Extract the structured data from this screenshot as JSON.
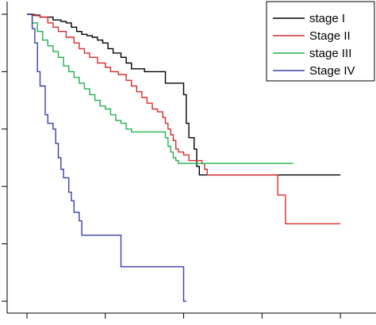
{
  "chart_data": {
    "type": "line",
    "step": true,
    "title": "",
    "xlabel": "",
    "ylabel": "",
    "xlim": [
      0,
      130
    ],
    "ylim": [
      0,
      1
    ],
    "grid": false,
    "legend_position": "top-right",
    "x_ticks": [
      0,
      30,
      60,
      90,
      120
    ],
    "y_ticks": [
      0.0,
      0.2,
      0.4,
      0.6,
      0.8,
      1.0
    ],
    "series": [
      {
        "name": "stage I",
        "color": "#000000",
        "x": [
          0,
          2,
          5,
          10,
          13,
          15,
          17,
          19,
          21,
          23,
          25,
          27,
          29,
          31,
          33,
          36,
          38,
          40,
          45,
          53,
          55,
          60,
          61,
          62,
          64,
          65,
          66,
          120
        ],
        "y": [
          1.0,
          0.997,
          0.99,
          0.98,
          0.975,
          0.97,
          0.955,
          0.94,
          0.93,
          0.925,
          0.92,
          0.91,
          0.9,
          0.88,
          0.865,
          0.85,
          0.83,
          0.81,
          0.8,
          0.76,
          0.76,
          0.72,
          0.62,
          0.57,
          0.53,
          0.47,
          0.44,
          0.44
        ]
      },
      {
        "name": "Stage II",
        "color": "#d82c2c",
        "x": [
          0,
          3,
          5,
          8,
          10,
          12,
          15,
          18,
          20,
          22,
          24,
          27,
          30,
          32,
          35,
          38,
          40,
          42,
          44,
          46,
          48,
          50,
          52,
          53,
          54,
          55,
          56,
          57,
          58,
          60,
          62,
          67,
          68,
          69,
          93,
          96,
          99,
          120
        ],
        "y": [
          1.0,
          0.995,
          0.99,
          0.97,
          0.955,
          0.94,
          0.92,
          0.9,
          0.88,
          0.865,
          0.85,
          0.83,
          0.815,
          0.8,
          0.79,
          0.77,
          0.75,
          0.73,
          0.71,
          0.69,
          0.67,
          0.66,
          0.64,
          0.62,
          0.6,
          0.58,
          0.56,
          0.53,
          0.52,
          0.51,
          0.49,
          0.48,
          0.46,
          0.44,
          0.44,
          0.37,
          0.27,
          0.27
        ]
      },
      {
        "name": "stage III",
        "color": "#22b14c",
        "x": [
          0,
          2,
          4,
          6,
          8,
          10,
          12,
          14,
          16,
          18,
          20,
          22,
          24,
          26,
          28,
          30,
          32,
          34,
          36,
          38,
          40,
          45,
          52,
          53,
          54,
          55,
          56,
          57,
          58,
          60,
          62,
          102
        ],
        "y": [
          1.0,
          0.97,
          0.94,
          0.91,
          0.89,
          0.87,
          0.85,
          0.82,
          0.8,
          0.78,
          0.76,
          0.74,
          0.72,
          0.7,
          0.68,
          0.67,
          0.65,
          0.63,
          0.62,
          0.6,
          0.59,
          0.59,
          0.59,
          0.57,
          0.54,
          0.52,
          0.5,
          0.49,
          0.48,
          0.48,
          0.48,
          0.48
        ]
      },
      {
        "name": "Stage IV",
        "color": "#3b3fa8",
        "x": [
          0,
          2,
          3,
          4,
          5,
          7,
          8,
          10,
          11,
          12,
          13,
          14,
          16,
          17,
          18,
          20,
          21,
          24,
          36,
          37,
          60,
          61
        ],
        "y": [
          1.0,
          0.95,
          0.9,
          0.8,
          0.75,
          0.65,
          0.62,
          0.6,
          0.55,
          0.5,
          0.46,
          0.43,
          0.38,
          0.35,
          0.31,
          0.28,
          0.23,
          0.23,
          0.12,
          0.12,
          0.0,
          0.0
        ]
      }
    ]
  }
}
